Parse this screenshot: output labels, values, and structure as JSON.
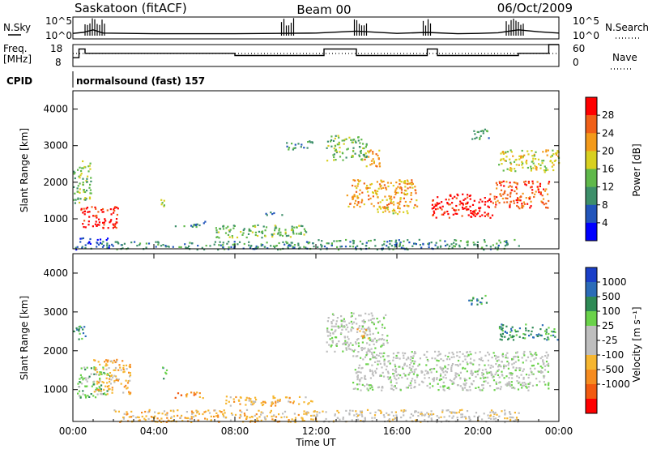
{
  "header": {
    "title": "Saskatoon (fitACF)",
    "beam": "Beam 00",
    "date": "06/Oct/2009"
  },
  "labels": {
    "nsky": "N.Sky",
    "nsky_ticks": [
      "10^5",
      "10^0"
    ],
    "nsearch": "N.Search",
    "nsearch_ticks": [
      "10^5",
      "10^0"
    ],
    "freq_line1": "Freq.",
    "freq_line2": "[MHz]",
    "freq_ticks": [
      "18",
      "8"
    ],
    "nave": "Nave",
    "nave_ticks": [
      "60",
      "0"
    ],
    "cpid": "CPID",
    "cpid_value": "normalsound (fast) 157",
    "xlabel": "Time UT"
  },
  "colors": {
    "power": [
      "#0000ff",
      "#2255bb",
      "#3d8f6a",
      "#5fb84a",
      "#d8d020",
      "#f39a1a",
      "#f06018",
      "#ff0000"
    ],
    "velocity": [
      "#1a3fc8",
      "#2b6cb8",
      "#2e8a55",
      "#6ad24a",
      "#bebebe",
      "#bebebe",
      "#f6b630",
      "#f68c20",
      "#f25a10",
      "#ff0000"
    ]
  },
  "chart_data": [
    {
      "type": "heatmap",
      "name": "Power",
      "xlabel": "Time UT",
      "ylabel": "Slant Range [km]",
      "x_ticks": [
        "00:00",
        "04:00",
        "08:00",
        "12:00",
        "16:00",
        "20:00",
        "00:00"
      ],
      "xlim_hours": [
        0,
        24
      ],
      "ylim_km": [
        180,
        4500
      ],
      "y_ticks": [
        1000,
        2000,
        3000,
        4000
      ],
      "colorbar_label": "Power [dB]",
      "colorbar_ticks": [
        "4",
        "8",
        "12",
        "16",
        "20",
        "24",
        "28"
      ],
      "features": [
        {
          "t0": 0.0,
          "t1": 0.9,
          "r0": 1450,
          "r1": 2600,
          "level": 3
        },
        {
          "t0": 0.3,
          "t1": 2.2,
          "r0": 750,
          "r1": 1350,
          "level": 7
        },
        {
          "t0": 0.1,
          "t1": 2.0,
          "r0": 180,
          "r1": 500,
          "level": 1
        },
        {
          "t0": 4.3,
          "t1": 4.5,
          "r0": 1300,
          "r1": 1600,
          "level": 4
        },
        {
          "t0": 5.0,
          "t1": 6.5,
          "r0": 800,
          "r1": 950,
          "level": 2
        },
        {
          "t0": 7.0,
          "t1": 11.5,
          "r0": 500,
          "r1": 850,
          "level": 3
        },
        {
          "t0": 2.0,
          "t1": 12.0,
          "r0": 180,
          "r1": 400,
          "level": 2
        },
        {
          "t0": 9.5,
          "t1": 10.5,
          "r0": 1100,
          "r1": 1200,
          "level": 1
        },
        {
          "t0": 10.5,
          "t1": 11.8,
          "r0": 2900,
          "r1": 3150,
          "level": 2
        },
        {
          "t0": 12.5,
          "t1": 14.5,
          "r0": 2600,
          "r1": 3300,
          "level": 3
        },
        {
          "t0": 13.5,
          "t1": 17.0,
          "r0": 1300,
          "r1": 2100,
          "level": 5
        },
        {
          "t0": 15.0,
          "t1": 16.5,
          "r0": 1100,
          "r1": 1350,
          "level": 4
        },
        {
          "t0": 17.6,
          "t1": 20.8,
          "r0": 1050,
          "r1": 1700,
          "level": 7
        },
        {
          "t0": 20.8,
          "t1": 23.5,
          "r0": 1300,
          "r1": 2050,
          "level": 6
        },
        {
          "t0": 21.0,
          "t1": 24.0,
          "r0": 2300,
          "r1": 2900,
          "level": 4
        },
        {
          "t0": 14.3,
          "t1": 15.2,
          "r0": 2450,
          "r1": 2900,
          "level": 5
        },
        {
          "t0": 12.0,
          "t1": 22.0,
          "r0": 180,
          "r1": 450,
          "level": 2
        },
        {
          "t0": 19.5,
          "t1": 20.5,
          "r0": 3200,
          "r1": 3500,
          "level": 2
        }
      ]
    },
    {
      "type": "heatmap",
      "name": "Velocity",
      "xlabel": "Time UT",
      "ylabel": "Slant Range [km]",
      "x_ticks": [
        "00:00",
        "04:00",
        "08:00",
        "12:00",
        "16:00",
        "20:00",
        "00:00"
      ],
      "xlim_hours": [
        0,
        24
      ],
      "ylim_km": [
        180,
        4500
      ],
      "y_ticks": [
        1000,
        2000,
        3000,
        4000
      ],
      "colorbar_label": "Velocity [m s⁻¹]",
      "colorbar_ticks": [
        "1000",
        "500",
        "100",
        "25",
        "-25",
        "-100",
        "-500",
        "-1000"
      ],
      "features": [
        {
          "t0": 0.2,
          "t1": 1.8,
          "r0": 800,
          "r1": 1600,
          "level": 3
        },
        {
          "t0": 1.0,
          "t1": 2.8,
          "r0": 900,
          "r1": 1800,
          "level": 6
        },
        {
          "t0": 0.0,
          "t1": 0.6,
          "r0": 2300,
          "r1": 2700,
          "level": 2
        },
        {
          "t0": 4.3,
          "t1": 4.6,
          "r0": 1300,
          "r1": 1600,
          "level": 2
        },
        {
          "t0": 5.0,
          "t1": 6.6,
          "r0": 800,
          "r1": 950,
          "level": 7
        },
        {
          "t0": 7.5,
          "t1": 11.8,
          "r0": 600,
          "r1": 850,
          "level": 6
        },
        {
          "t0": 2.0,
          "t1": 12.0,
          "r0": 180,
          "r1": 500,
          "level": 6
        },
        {
          "t0": 12.5,
          "t1": 15.5,
          "r0": 2000,
          "r1": 3000,
          "level": 4
        },
        {
          "t0": 13.8,
          "t1": 23.5,
          "r0": 1000,
          "r1": 2000,
          "level": 4
        },
        {
          "t0": 14.0,
          "t1": 14.6,
          "r0": 2300,
          "r1": 2600,
          "level": 6
        },
        {
          "t0": 21.0,
          "t1": 24.0,
          "r0": 2300,
          "r1": 2700,
          "level": 2
        },
        {
          "t0": 19.5,
          "t1": 20.5,
          "r0": 3200,
          "r1": 3450,
          "level": 2
        },
        {
          "t0": 12.0,
          "t1": 22.0,
          "r0": 180,
          "r1": 500,
          "level": 5
        }
      ]
    },
    {
      "type": "line",
      "name": "N.Sky / N.Search",
      "x_hours": [
        0,
        0.5,
        1.0,
        1.5,
        4,
        8,
        10,
        12,
        14,
        16,
        17.5,
        19,
        20,
        21,
        22,
        23,
        24
      ],
      "values": [
        0.35,
        0.5,
        0.9,
        0.4,
        0.3,
        0.3,
        0.35,
        0.4,
        0.7,
        0.35,
        0.5,
        0.3,
        0.35,
        0.45,
        0.9,
        0.6,
        0.4
      ]
    },
    {
      "type": "line",
      "name": "Freq",
      "x_hours": [
        0,
        0.3,
        0.6,
        2,
        8,
        12,
        12.4,
        14,
        16,
        17.5,
        18,
        21,
        22,
        23.5,
        24
      ],
      "values": [
        12,
        16,
        14,
        14,
        13,
        13,
        16,
        13,
        13,
        16,
        13,
        13,
        14,
        18,
        18
      ]
    }
  ]
}
